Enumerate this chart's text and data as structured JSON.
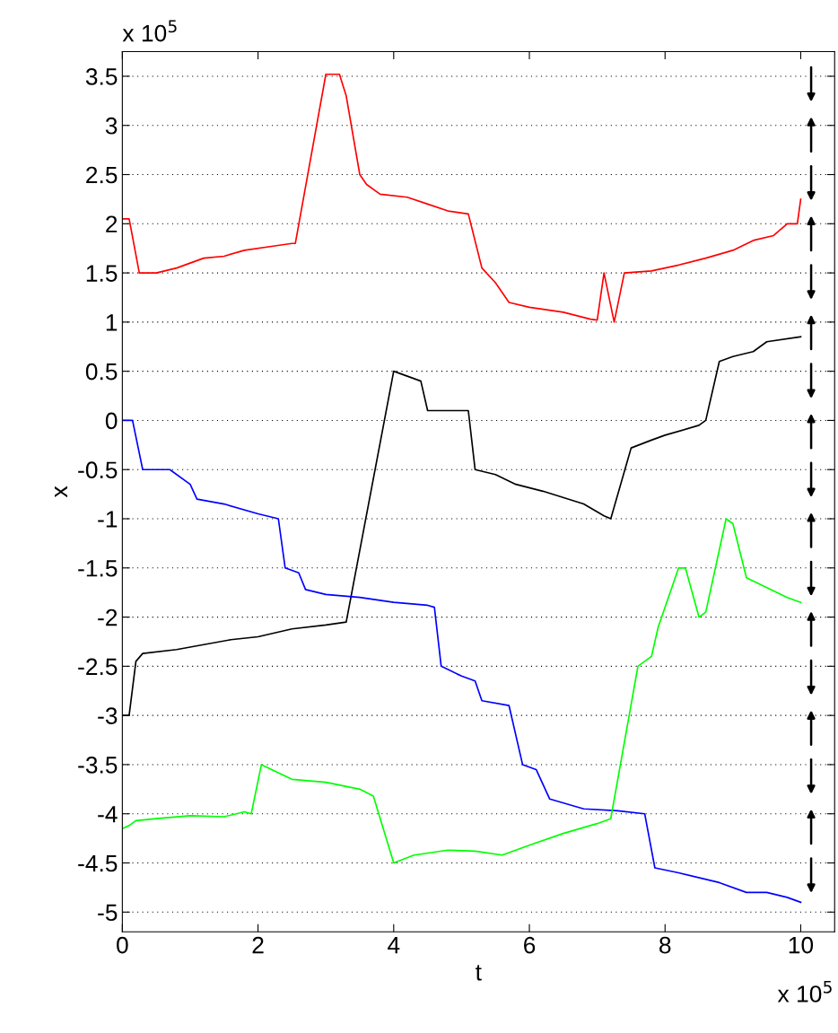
{
  "chart_data": {
    "type": "line",
    "xlabel": "t",
    "ylabel": "x",
    "annotations": [
      "x 10$^{5}$",
      "x 10$^{5}$"
    ],
    "xlim": [
      0,
      10.5
    ],
    "ylim": [
      -5.2,
      3.75
    ],
    "xticks": [
      0,
      2,
      4,
      6,
      8,
      10
    ],
    "yticks": [
      -5,
      -4.5,
      -4,
      -3.5,
      -3,
      -2.5,
      -2,
      -1.5,
      -1,
      -0.5,
      0,
      0.5,
      1,
      1.5,
      2,
      2.5,
      3,
      3.5
    ],
    "grid": "y",
    "series": [
      {
        "color": "#ff0000",
        "x": [
          0,
          0.1,
          0.25,
          0.5,
          0.8,
          1.0,
          1.2,
          1.5,
          1.8,
          2.2,
          2.5,
          2.55,
          3.0,
          3.2,
          3.3,
          3.5,
          3.6,
          3.8,
          4.2,
          4.5,
          4.8,
          5.1,
          5.3,
          5.5,
          5.7,
          6.0,
          6.5,
          6.9,
          7.0,
          7.1,
          7.25,
          7.4,
          7.8,
          8.2,
          8.6,
          9.0,
          9.3,
          9.6,
          9.8,
          9.95,
          10
        ],
        "values": [
          2.05,
          2.05,
          1.5,
          1.5,
          1.55,
          1.6,
          1.65,
          1.67,
          1.73,
          1.77,
          1.8,
          1.8,
          3.52,
          3.52,
          3.3,
          2.5,
          2.4,
          2.3,
          2.27,
          2.2,
          2.13,
          2.1,
          1.55,
          1.4,
          1.2,
          1.15,
          1.1,
          1.03,
          1.02,
          1.5,
          1.0,
          1.5,
          1.52,
          1.58,
          1.65,
          1.73,
          1.83,
          1.88,
          2.0,
          2.0,
          2.25
        ]
      },
      {
        "color": "#000000",
        "x": [
          0,
          0.1,
          0.2,
          0.3,
          0.8,
          1.2,
          1.6,
          2.0,
          2.5,
          3.0,
          3.3,
          4.0,
          4.2,
          4.4,
          4.5,
          5.0,
          5.1,
          5.2,
          5.5,
          5.8,
          6.2,
          6.8,
          7.1,
          7.2,
          7.5,
          7.8,
          8.0,
          8.5,
          8.6,
          8.8,
          9.0,
          9.3,
          9.5,
          10
        ],
        "values": [
          -3.0,
          -3.0,
          -2.45,
          -2.37,
          -2.33,
          -2.28,
          -2.23,
          -2.2,
          -2.12,
          -2.08,
          -2.05,
          0.5,
          0.45,
          0.4,
          0.1,
          0.1,
          0.1,
          -0.5,
          -0.55,
          -0.65,
          -0.72,
          -0.85,
          -0.97,
          -1.0,
          -0.28,
          -0.2,
          -0.15,
          -0.05,
          0.0,
          0.6,
          0.65,
          0.7,
          0.8,
          0.85
        ]
      },
      {
        "color": "#0000ff",
        "x": [
          0,
          0.15,
          0.3,
          0.7,
          1.0,
          1.1,
          1.5,
          2.0,
          2.3,
          2.4,
          2.6,
          2.7,
          3.0,
          3.5,
          4.0,
          4.5,
          4.6,
          4.7,
          5.0,
          5.2,
          5.3,
          5.7,
          5.9,
          6.1,
          6.3,
          6.8,
          7.3,
          7.7,
          7.85,
          8.2,
          8.8,
          9.2,
          9.5,
          9.8,
          10
        ],
        "values": [
          0,
          0,
          -0.5,
          -0.5,
          -0.65,
          -0.8,
          -0.85,
          -0.95,
          -1.0,
          -1.5,
          -1.55,
          -1.72,
          -1.77,
          -1.8,
          -1.85,
          -1.88,
          -1.9,
          -2.5,
          -2.6,
          -2.65,
          -2.85,
          -2.9,
          -3.5,
          -3.55,
          -3.85,
          -3.95,
          -3.97,
          -4.0,
          -4.55,
          -4.6,
          -4.7,
          -4.8,
          -4.8,
          -4.85,
          -4.9
        ]
      },
      {
        "color": "#00ff00",
        "x": [
          0,
          0.1,
          0.2,
          0.5,
          1.0,
          1.5,
          1.8,
          1.9,
          2.05,
          2.2,
          2.5,
          3.0,
          3.5,
          3.7,
          4.0,
          4.3,
          4.8,
          5.2,
          5.6,
          6.0,
          6.5,
          7.0,
          7.2,
          7.6,
          7.8,
          7.9,
          8.2,
          8.3,
          8.5,
          8.6,
          8.9,
          9.0,
          9.2,
          9.5,
          9.8,
          10
        ],
        "values": [
          -4.15,
          -4.12,
          -4.07,
          -4.05,
          -4.02,
          -4.03,
          -3.98,
          -4.0,
          -3.5,
          -3.55,
          -3.65,
          -3.68,
          -3.75,
          -3.82,
          -4.5,
          -4.42,
          -4.37,
          -4.38,
          -4.42,
          -4.32,
          -4.2,
          -4.1,
          -4.05,
          -2.5,
          -2.4,
          -2.1,
          -1.5,
          -1.5,
          -2.0,
          -1.95,
          -1.0,
          -1.05,
          -1.6,
          -1.7,
          -1.8,
          -1.85
        ]
      }
    ]
  }
}
